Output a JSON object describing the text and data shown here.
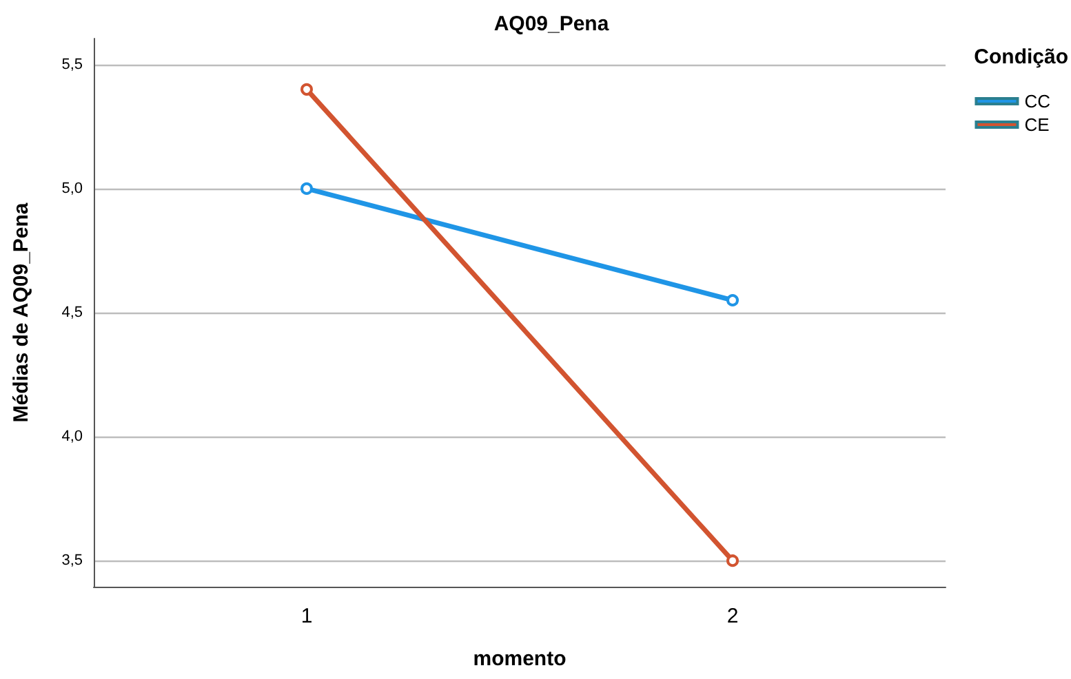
{
  "chart_data": {
    "type": "line",
    "title": "AQ09_Pena",
    "xlabel": "momento",
    "ylabel": "Médias de AQ09_Pena",
    "legend_title": "Condição",
    "categories": [
      "1",
      "2"
    ],
    "series": [
      {
        "name": "CC",
        "color": "#1f95e6",
        "values": [
          5.0,
          4.55
        ]
      },
      {
        "name": "CE",
        "color": "#d25430",
        "values": [
          5.4,
          3.5
        ]
      }
    ],
    "ylim": [
      3.395,
      5.605
    ],
    "yticks": [
      {
        "value": 3.5,
        "label": "3,5"
      },
      {
        "value": 4.0,
        "label": "4,0"
      },
      {
        "value": 4.5,
        "label": "4,5"
      },
      {
        "value": 5.0,
        "label": "5,0"
      },
      {
        "value": 5.5,
        "label": "5,5"
      }
    ],
    "grid": "y",
    "legend": "top right",
    "marker": "circle",
    "line_style": "solid"
  }
}
